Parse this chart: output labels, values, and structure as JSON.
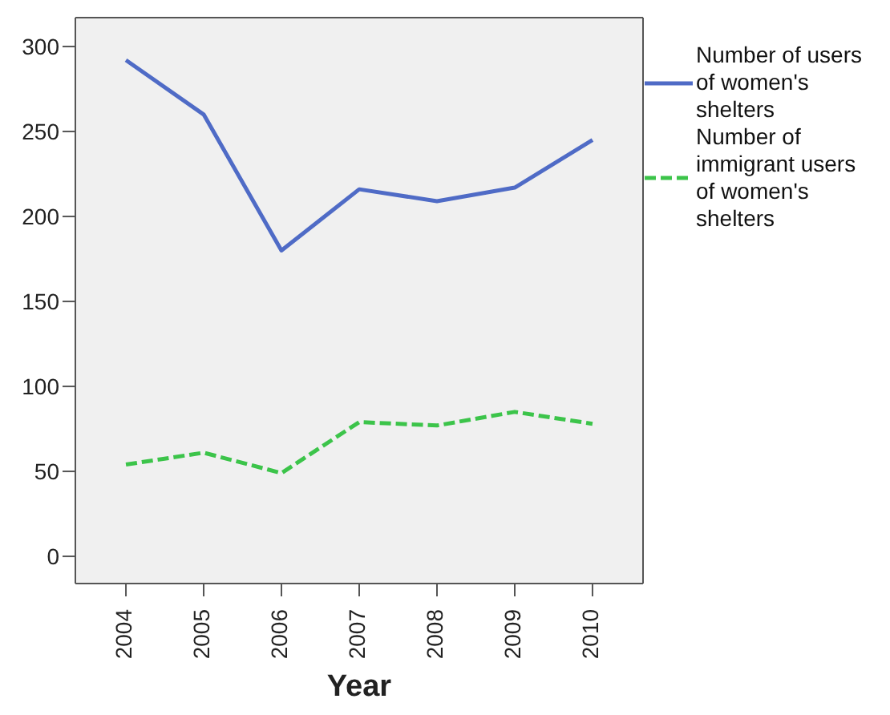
{
  "chart_data": {
    "type": "line",
    "xlabel": "Year",
    "categories": [
      "2004",
      "2005",
      "2006",
      "2007",
      "2008",
      "2009",
      "2010"
    ],
    "series": [
      {
        "name": "Number of users of women's shelters",
        "color": "#4f6bc6",
        "line_style": "solid",
        "values": [
          292,
          260,
          180,
          216,
          209,
          217,
          245
        ]
      },
      {
        "name": "Number of immigrant users of women's shelters",
        "color": "#3cc44a",
        "line_style": "dashed",
        "values": [
          54,
          61,
          49,
          79,
          77,
          85,
          78
        ]
      }
    ],
    "ylim": [
      -16,
      317
    ],
    "yticks": [
      0,
      50,
      100,
      150,
      200,
      250,
      300
    ],
    "grid": false,
    "legend": "right",
    "marker": "none"
  }
}
